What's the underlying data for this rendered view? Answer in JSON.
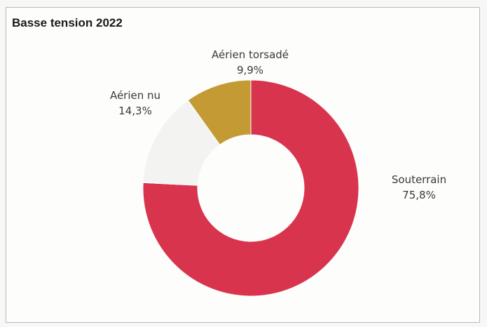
{
  "chart_data": {
    "type": "pie",
    "subtype": "donut",
    "title": "Basse tension  2022",
    "slices": [
      {
        "name": "Souterrain",
        "value": 75.8,
        "value_label": "75,8%",
        "color": "#d8344d"
      },
      {
        "name": "Aérien nu",
        "value": 14.3,
        "value_label": "14,3%",
        "color": "#f3f3f1"
      },
      {
        "name": "Aérien torsadé",
        "value": 9.9,
        "value_label": "9,9%",
        "color": "#c49a35"
      }
    ]
  }
}
